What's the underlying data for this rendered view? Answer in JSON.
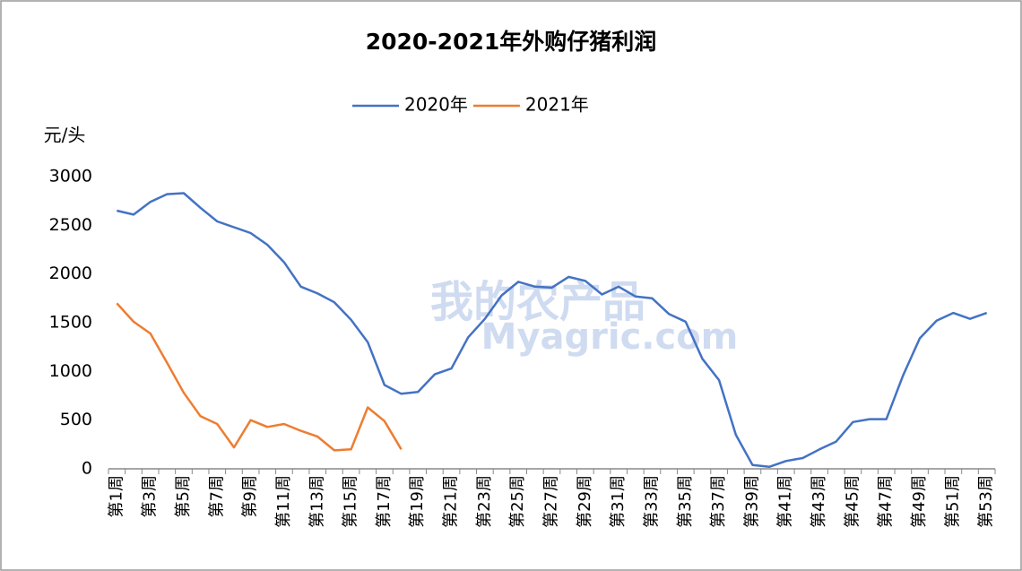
{
  "chart_data": {
    "type": "line",
    "title": "2020-2021年外购仔猪利润",
    "ylabel": "元/头",
    "watermark": [
      "我的农产品",
      "Myagric.com"
    ],
    "categories": [
      "第1周",
      null,
      "第3周",
      null,
      "第5周",
      null,
      "第7周",
      null,
      "第9周",
      null,
      "第11周",
      null,
      "第13周",
      null,
      "第15周",
      null,
      "第17周",
      null,
      "第19周",
      null,
      "第21周",
      null,
      "第23周",
      null,
      "第25周",
      null,
      "第27周",
      null,
      "第29周",
      null,
      "第31周",
      null,
      "第33周",
      null,
      "第35周",
      null,
      "第37周",
      null,
      "第39周",
      null,
      "第41周",
      null,
      "第43周",
      null,
      "第45周",
      null,
      "第47周",
      null,
      "第49周",
      null,
      "第51周",
      null,
      "第53周"
    ],
    "series": [
      {
        "name": "2020年",
        "color": "#4472c4",
        "values": [
          2650,
          2610,
          2740,
          2820,
          2830,
          2680,
          2540,
          2480,
          2420,
          2300,
          2120,
          1870,
          1800,
          1710,
          1530,
          1300,
          860,
          770,
          790,
          970,
          1030,
          1350,
          1540,
          1780,
          1920,
          1870,
          1860,
          1970,
          1930,
          1790,
          1870,
          1770,
          1750,
          1590,
          1510,
          1130,
          910,
          350,
          40,
          20,
          80,
          110,
          200,
          280,
          480,
          510,
          510,
          960,
          1340,
          1520,
          1600,
          1540,
          1600
        ]
      },
      {
        "name": "2021年",
        "color": "#ed7d31",
        "values": [
          1700,
          1510,
          1390,
          1090,
          780,
          540,
          460,
          220,
          500,
          430,
          460,
          390,
          330,
          190,
          200,
          630,
          490,
          200,
          null,
          null,
          null,
          null,
          null,
          null,
          null,
          null,
          null,
          null,
          null,
          null,
          null,
          null,
          null,
          null,
          null,
          null,
          null,
          null,
          null,
          null,
          null,
          null,
          null,
          null,
          null,
          null,
          null,
          null,
          null,
          null,
          null,
          null,
          null
        ]
      }
    ],
    "ylim": [
      0,
      3000
    ],
    "yticks": [
      0,
      500,
      1000,
      1500,
      2000,
      2500,
      3000
    ],
    "grid": false,
    "legend": "top"
  }
}
